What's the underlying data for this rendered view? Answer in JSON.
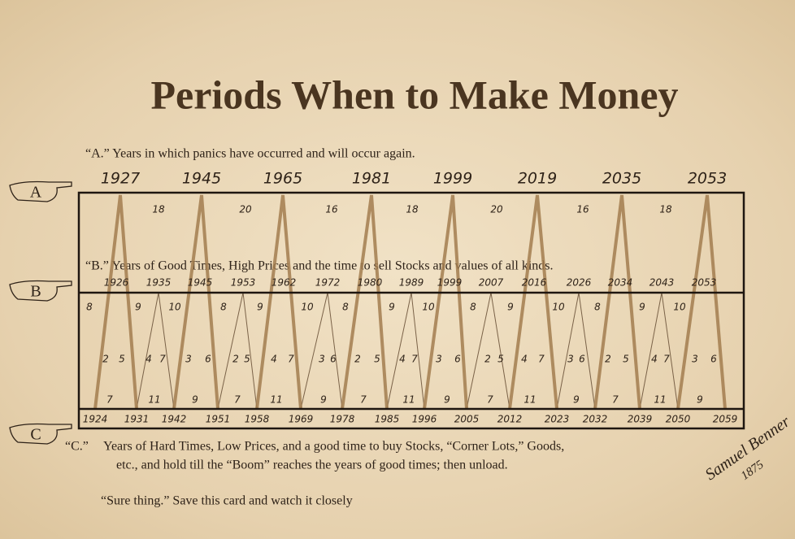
{
  "header": {
    "title": "Periods When to Make Money"
  },
  "markers": {
    "a": "A",
    "b": "B",
    "c": "C"
  },
  "panics": {
    "caption": "“A.” Years in which panics have occurred and will occur again.",
    "years": [
      1927,
      1945,
      1965,
      1981,
      1999,
      2019,
      2035,
      2053
    ],
    "intervals": [
      18,
      20,
      16,
      18,
      20,
      16,
      18
    ]
  },
  "good_times": {
    "caption": "“B.” Years of Good Times, High Prices and the time to sell Stocks and values of all kinds.",
    "years": [
      1926,
      1935,
      1945,
      1953,
      1962,
      1972,
      1980,
      1989,
      1999,
      2007,
      2016,
      2026,
      2034,
      2043,
      2053
    ],
    "intervals": [
      8,
      9,
      10,
      8,
      9,
      10,
      8,
      9,
      10,
      8,
      9,
      10,
      8,
      9,
      10
    ],
    "inner": [
      [
        2,
        5
      ],
      [
        4,
        7
      ],
      [
        3,
        6
      ],
      [
        2,
        5
      ],
      [
        4,
        7
      ],
      [
        3,
        6
      ],
      [
        2,
        5
      ],
      [
        4,
        7
      ],
      [
        3,
        6
      ],
      [
        2,
        5
      ],
      [
        4,
        7
      ],
      [
        3,
        6
      ],
      [
        2,
        5
      ],
      [
        4,
        7
      ],
      [
        3,
        6
      ]
    ],
    "lower": [
      7,
      11,
      9,
      7,
      11,
      9,
      7,
      11,
      9,
      7,
      11,
      9,
      7,
      11,
      9
    ]
  },
  "hard_times": {
    "years": [
      1924,
      1931,
      1942,
      1951,
      1958,
      1969,
      1978,
      1985,
      1996,
      2005,
      2012,
      2023,
      2032,
      2039,
      2050,
      2059
    ],
    "caption_label": "“C.”",
    "caption_lines": [
      "Years of Hard Times, Low Prices, and a good time to buy Stocks, “Corner Lots,” Goods,",
      "etc., and hold till  the “Boom” reaches the years of good times; then unload."
    ]
  },
  "footer": {
    "note": "“Sure thing.” Save this card and watch it closely"
  },
  "signature": {
    "name": "Samuel Benner",
    "year": "1875"
  }
}
